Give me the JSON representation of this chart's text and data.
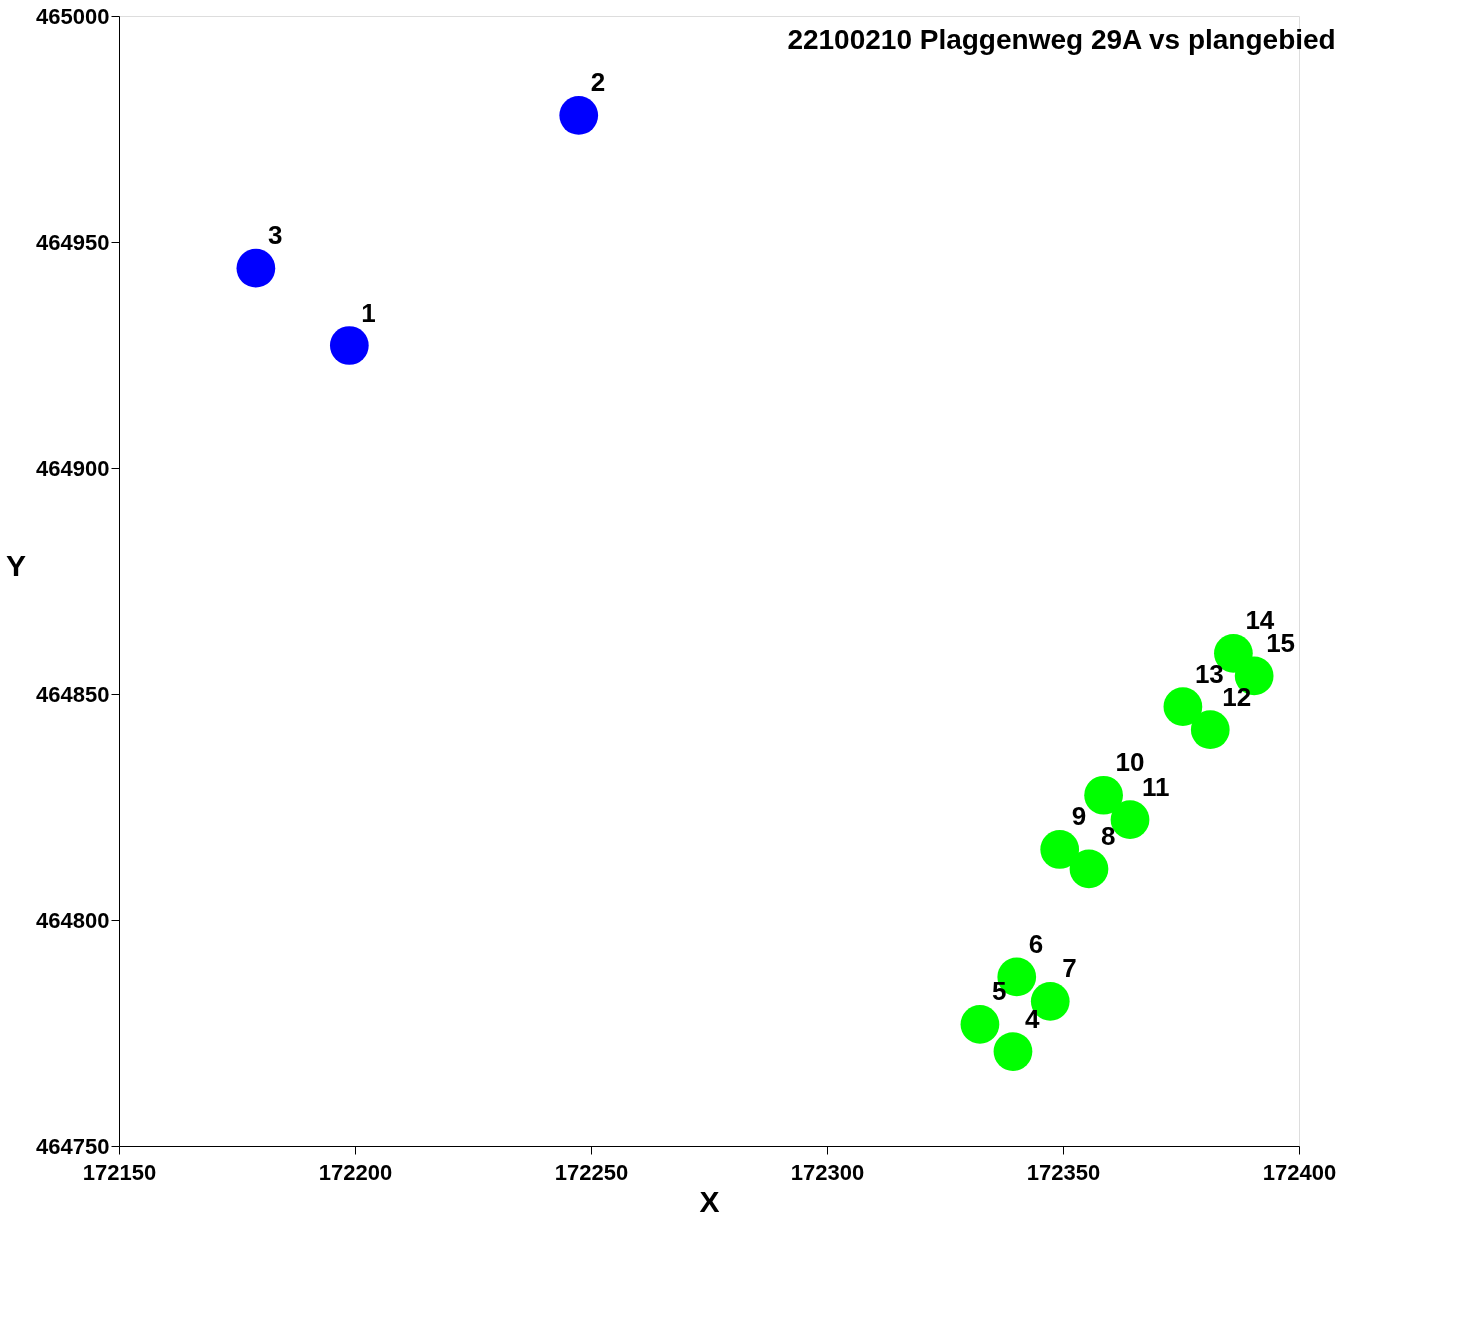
{
  "chart_data": {
    "type": "scatter",
    "title": "22100210 Plaggenweg 29A vs plangebied",
    "xlabel": "X",
    "ylabel": "Y",
    "xlim": [
      172150,
      172400
    ],
    "xticks": [
      172150,
      172200,
      172250,
      172300,
      172350,
      172400
    ],
    "ylim": [
      464750,
      465000
    ],
    "yticks": [
      464750,
      464800,
      464850,
      464900,
      464950,
      465000
    ],
    "grid": false,
    "legend": false,
    "marker": "circle",
    "series": [
      {
        "color": "#0000ff",
        "x": [
          172198.8,
          172247.4,
          172179.0
        ],
        "values": [
          464927.1,
          464978.0,
          464944.2
        ]
      },
      {
        "color": "#00ff00",
        "x": [
          172339.4,
          172332.4,
          172340.2,
          172347.3,
          172355.5,
          172349.3,
          172358.6,
          172364.2,
          172381.2,
          172375.4,
          172386.1,
          172390.5
        ],
        "values": [
          464770.9,
          464776.9,
          464787.4,
          464782.0,
          464811.3,
          464815.6,
          464827.6,
          464822.2,
          464842.1,
          464847.2,
          464859.0,
          464854.0
        ]
      }
    ],
    "annotations": [
      {
        "text": "1",
        "x": 172198.8,
        "y": 464927.1
      },
      {
        "text": "2",
        "x": 172247.4,
        "y": 464978.0
      },
      {
        "text": "3",
        "x": 172179.0,
        "y": 464944.2
      },
      {
        "text": "4",
        "x": 172339.4,
        "y": 464770.9
      },
      {
        "text": "5",
        "x": 172332.4,
        "y": 464776.9
      },
      {
        "text": "6",
        "x": 172340.2,
        "y": 464787.4
      },
      {
        "text": "7",
        "x": 172347.3,
        "y": 464782.0
      },
      {
        "text": "8",
        "x": 172355.5,
        "y": 464811.3
      },
      {
        "text": "9",
        "x": 172349.3,
        "y": 464815.6
      },
      {
        "text": "10",
        "x": 172358.6,
        "y": 464827.6
      },
      {
        "text": "11",
        "x": 172364.2,
        "y": 464822.2
      },
      {
        "text": "12",
        "x": 172381.2,
        "y": 464842.1
      },
      {
        "text": "13",
        "x": 172375.4,
        "y": 464847.2
      },
      {
        "text": "14",
        "x": 172386.1,
        "y": 464859.0
      },
      {
        "text": "15",
        "x": 172390.5,
        "y": 464854.0
      }
    ]
  }
}
